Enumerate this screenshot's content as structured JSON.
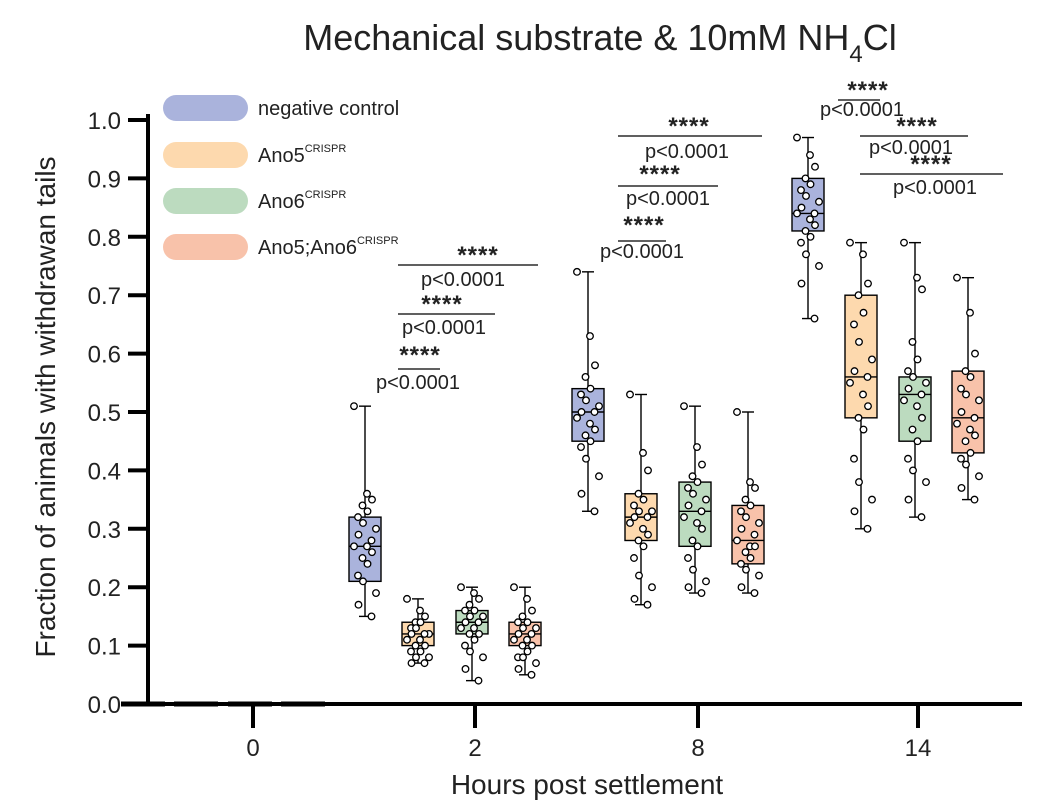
{
  "chart_data": {
    "type": "box",
    "title": {
      "main": "Mechanical substrate & 10mM NH",
      "subscript": "4",
      "suffix": "Cl"
    },
    "xlabel": "Hours post settlement",
    "ylabel": "Fraction of animals with withdrawan tails",
    "ylim": [
      0,
      1.0
    ],
    "yticks": [
      "0.0",
      "0.1",
      "0.2",
      "0.3",
      "0.4",
      "0.5",
      "0.6",
      "0.7",
      "0.8",
      "0.9",
      "1.0"
    ],
    "categories": [
      "0",
      "2",
      "8",
      "14"
    ],
    "legend": {
      "placement": "top-left",
      "entries": [
        {
          "label": "negative control",
          "sup": "",
          "color": "#aab3dc"
        },
        {
          "label": "Ano5",
          "sup": "CRISPR",
          "color": "#fdd9ae"
        },
        {
          "label": "Ano6",
          "sup": "CRISPR",
          "color": "#bcdbbf"
        },
        {
          "label": "Ano5;Ano6",
          "sup": "CRISPR",
          "color": "#f8c2aa"
        }
      ]
    },
    "series": [
      {
        "name": "negative control",
        "color": "#aab3dc",
        "boxes": [
          {
            "x": "0",
            "min": 0,
            "q1": 0,
            "median": 0,
            "q3": 0,
            "max": 0,
            "points": [
              0,
              0,
              0,
              0,
              0,
              0,
              0,
              0,
              0,
              0,
              0,
              0,
              0,
              0,
              0,
              0,
              0,
              0,
              0,
              0
            ]
          },
          {
            "x": "2",
            "min": 0.15,
            "q1": 0.21,
            "median": 0.27,
            "q3": 0.32,
            "max": 0.51,
            "points": [
              0.51,
              0.36,
              0.35,
              0.34,
              0.33,
              0.32,
              0.31,
              0.3,
              0.29,
              0.28,
              0.27,
              0.27,
              0.26,
              0.25,
              0.24,
              0.22,
              0.21,
              0.19,
              0.17,
              0.15
            ]
          },
          {
            "x": "8",
            "min": 0.33,
            "q1": 0.45,
            "median": 0.5,
            "q3": 0.54,
            "max": 0.74,
            "points": [
              0.74,
              0.63,
              0.58,
              0.56,
              0.54,
              0.53,
              0.52,
              0.51,
              0.5,
              0.5,
              0.49,
              0.48,
              0.47,
              0.46,
              0.45,
              0.44,
              0.42,
              0.39,
              0.36,
              0.33
            ]
          },
          {
            "x": "14",
            "min": 0.66,
            "q1": 0.81,
            "median": 0.84,
            "q3": 0.9,
            "max": 0.97,
            "points": [
              0.97,
              0.94,
              0.92,
              0.9,
              0.89,
              0.88,
              0.87,
              0.86,
              0.85,
              0.84,
              0.84,
              0.83,
              0.82,
              0.81,
              0.8,
              0.79,
              0.77,
              0.75,
              0.72,
              0.66
            ]
          }
        ]
      },
      {
        "name": "Ano5CRISPR",
        "color": "#fdd9ae",
        "boxes": [
          {
            "x": "0",
            "min": 0,
            "q1": 0,
            "median": 0,
            "q3": 0,
            "max": 0,
            "points": [
              0,
              0,
              0,
              0,
              0,
              0,
              0,
              0,
              0,
              0,
              0,
              0,
              0,
              0,
              0,
              0,
              0,
              0,
              0,
              0
            ]
          },
          {
            "x": "2",
            "min": 0.07,
            "q1": 0.1,
            "median": 0.12,
            "q3": 0.14,
            "max": 0.18,
            "points": [
              0.18,
              0.16,
              0.15,
              0.14,
              0.14,
              0.13,
              0.13,
              0.12,
              0.12,
              0.12,
              0.11,
              0.11,
              0.1,
              0.1,
              0.09,
              0.09,
              0.08,
              0.08,
              0.07,
              0.07
            ]
          },
          {
            "x": "8",
            "min": 0.17,
            "q1": 0.28,
            "median": 0.32,
            "q3": 0.36,
            "max": 0.53,
            "points": [
              0.53,
              0.43,
              0.4,
              0.36,
              0.35,
              0.34,
              0.33,
              0.33,
              0.32,
              0.32,
              0.31,
              0.3,
              0.29,
              0.28,
              0.27,
              0.25,
              0.22,
              0.2,
              0.18,
              0.17
            ]
          },
          {
            "x": "14",
            "min": 0.3,
            "q1": 0.49,
            "median": 0.56,
            "q3": 0.7,
            "max": 0.79,
            "points": [
              0.79,
              0.77,
              0.72,
              0.7,
              0.67,
              0.65,
              0.62,
              0.59,
              0.57,
              0.56,
              0.55,
              0.53,
              0.51,
              0.49,
              0.47,
              0.42,
              0.38,
              0.35,
              0.33,
              0.3
            ]
          }
        ]
      },
      {
        "name": "Ano6CRISPR",
        "color": "#bcdbbf",
        "boxes": [
          {
            "x": "0",
            "min": 0,
            "q1": 0,
            "median": 0,
            "q3": 0,
            "max": 0,
            "points": [
              0,
              0,
              0,
              0,
              0,
              0,
              0,
              0,
              0,
              0,
              0,
              0,
              0,
              0,
              0,
              0,
              0,
              0,
              0,
              0
            ]
          },
          {
            "x": "2",
            "min": 0.04,
            "q1": 0.12,
            "median": 0.14,
            "q3": 0.16,
            "max": 0.2,
            "points": [
              0.2,
              0.19,
              0.18,
              0.17,
              0.16,
              0.16,
              0.15,
              0.15,
              0.14,
              0.14,
              0.13,
              0.13,
              0.12,
              0.12,
              0.11,
              0.1,
              0.09,
              0.08,
              0.06,
              0.04
            ]
          },
          {
            "x": "8",
            "min": 0.19,
            "q1": 0.27,
            "median": 0.33,
            "q3": 0.38,
            "max": 0.51,
            "points": [
              0.51,
              0.44,
              0.41,
              0.39,
              0.38,
              0.37,
              0.36,
              0.35,
              0.34,
              0.33,
              0.32,
              0.31,
              0.3,
              0.28,
              0.27,
              0.25,
              0.23,
              0.21,
              0.2,
              0.19
            ]
          },
          {
            "x": "14",
            "min": 0.32,
            "q1": 0.45,
            "median": 0.53,
            "q3": 0.56,
            "max": 0.79,
            "points": [
              0.79,
              0.73,
              0.71,
              0.62,
              0.59,
              0.57,
              0.56,
              0.55,
              0.54,
              0.53,
              0.52,
              0.51,
              0.49,
              0.47,
              0.45,
              0.42,
              0.4,
              0.38,
              0.35,
              0.32
            ]
          }
        ]
      },
      {
        "name": "Ano5;Ano6CRISPR",
        "color": "#f8c2aa",
        "boxes": [
          {
            "x": "0",
            "min": 0,
            "q1": 0,
            "median": 0,
            "q3": 0,
            "max": 0,
            "points": [
              0,
              0,
              0,
              0,
              0,
              0,
              0,
              0,
              0,
              0,
              0,
              0,
              0,
              0,
              0,
              0,
              0,
              0,
              0,
              0
            ]
          },
          {
            "x": "2",
            "min": 0.05,
            "q1": 0.1,
            "median": 0.12,
            "q3": 0.14,
            "max": 0.2,
            "points": [
              0.2,
              0.18,
              0.16,
              0.15,
              0.14,
              0.14,
              0.13,
              0.13,
              0.12,
              0.12,
              0.11,
              0.11,
              0.1,
              0.1,
              0.09,
              0.08,
              0.08,
              0.07,
              0.06,
              0.05
            ]
          },
          {
            "x": "8",
            "min": 0.19,
            "q1": 0.24,
            "median": 0.28,
            "q3": 0.34,
            "max": 0.5,
            "points": [
              0.5,
              0.38,
              0.37,
              0.35,
              0.34,
              0.33,
              0.32,
              0.31,
              0.3,
              0.29,
              0.28,
              0.27,
              0.27,
              0.26,
              0.25,
              0.24,
              0.23,
              0.22,
              0.2,
              0.19
            ]
          },
          {
            "x": "14",
            "min": 0.35,
            "q1": 0.43,
            "median": 0.49,
            "q3": 0.57,
            "max": 0.73,
            "points": [
              0.73,
              0.67,
              0.6,
              0.57,
              0.56,
              0.54,
              0.53,
              0.52,
              0.5,
              0.49,
              0.48,
              0.47,
              0.46,
              0.45,
              0.43,
              0.42,
              0.41,
              0.39,
              0.37,
              0.35
            ]
          }
        ]
      }
    ],
    "annotations": [
      {
        "category": "2",
        "from_series": 0,
        "to_series": 1,
        "stars": "****",
        "p": "p<0.0001"
      },
      {
        "category": "2",
        "from_series": 0,
        "to_series": 2,
        "stars": "****",
        "p": "p<0.0001"
      },
      {
        "category": "2",
        "from_series": 0,
        "to_series": 3,
        "stars": "****",
        "p": "p<0.0001"
      },
      {
        "category": "8",
        "from_series": 0,
        "to_series": 1,
        "stars": "****",
        "p": "p<0.0001"
      },
      {
        "category": "8",
        "from_series": 0,
        "to_series": 2,
        "stars": "****",
        "p": "p<0.0001"
      },
      {
        "category": "8",
        "from_series": 0,
        "to_series": 3,
        "stars": "****",
        "p": "p<0.0001"
      },
      {
        "category": "14",
        "from_series": 0,
        "to_series": 1,
        "stars": "****",
        "p": "p<0.0001"
      },
      {
        "category": "14",
        "from_series": 0,
        "to_series": 2,
        "stars": "****",
        "p": "p<0.0001"
      },
      {
        "category": "14",
        "from_series": 0,
        "to_series": 3,
        "stars": "****",
        "p": "p<0.0001"
      }
    ],
    "grid": false
  }
}
